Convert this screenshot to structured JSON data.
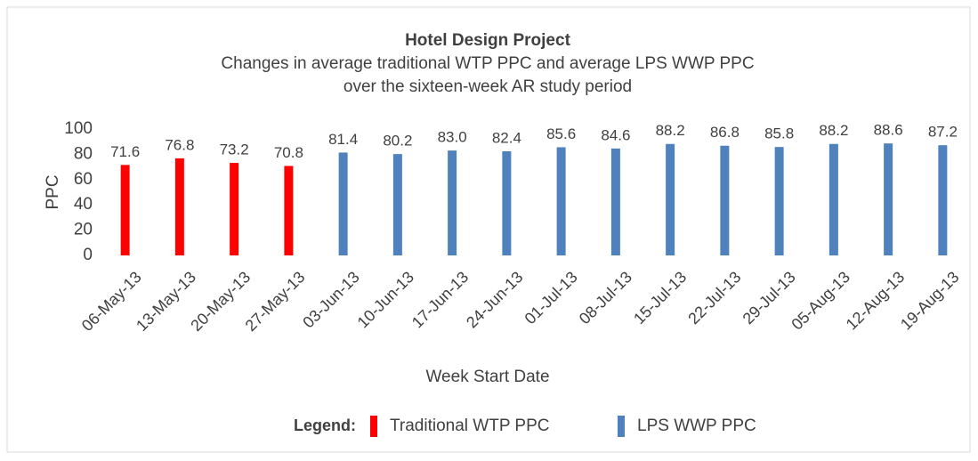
{
  "chart_data": {
    "type": "bar",
    "title": "Hotel Design Project",
    "subtitle": [
      "Changes in average traditional WTP PPC and average LPS WWP PPC",
      "over the sixteen-week AR study period"
    ],
    "x_label": "Week Start Date",
    "y_label": "PPC",
    "legend_title": "Legend:",
    "legend": "bottom",
    "grid": false,
    "categories": [
      "06-May-13",
      "13-May-13",
      "20-May-13",
      "27-May-13",
      "03-Jun-13",
      "10-Jun-13",
      "17-Jun-13",
      "24-Jun-13",
      "01-Jul-13",
      "08-Jul-13",
      "15-Jul-13",
      "22-Jul-13",
      "29-Jul-13",
      "05-Aug-13",
      "12-Aug-13",
      "19-Aug-13"
    ],
    "series": [
      {
        "name": "Traditional WTP PPC",
        "color": "#ff0000",
        "values": [
          71.6,
          76.8,
          73.2,
          70.8,
          null,
          null,
          null,
          null,
          null,
          null,
          null,
          null,
          null,
          null,
          null,
          null
        ],
        "value_labels": [
          "71.6",
          "76.8",
          "73.2",
          "70.8",
          null,
          null,
          null,
          null,
          null,
          null,
          null,
          null,
          null,
          null,
          null,
          null
        ]
      },
      {
        "name": "LPS WWP PPC",
        "color": "#4f81bd",
        "values": [
          null,
          null,
          null,
          null,
          81.4,
          80.2,
          83.0,
          82.4,
          85.6,
          84.6,
          88.2,
          86.8,
          85.8,
          88.2,
          88.6,
          87.2
        ],
        "value_labels": [
          null,
          null,
          null,
          null,
          "81.4",
          "80.2",
          "83.0",
          "82.4",
          "85.6",
          "84.6",
          "88.2",
          "86.8",
          "85.8",
          "88.2",
          "88.6",
          "87.2"
        ]
      }
    ],
    "ylim": [
      0,
      100
    ],
    "yticks": [
      0,
      20,
      40,
      60,
      80,
      100
    ]
  }
}
